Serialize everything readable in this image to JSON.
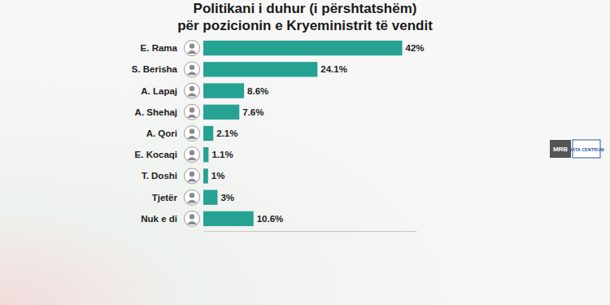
{
  "chart_data": {
    "type": "bar",
    "orientation": "horizontal",
    "title": "Politikani i duhur (i përshtatshëm)",
    "subtitle": "për pozicionin e Kryeministrit të vendit",
    "categories": [
      "E. Rama",
      "S. Berisha",
      "A. Lapaj",
      "A. Shehaj",
      "A. Qori",
      "E. Kocaqi",
      "T. Doshi",
      "Tjetër",
      "Nuk e di"
    ],
    "values": [
      42,
      24.1,
      8.6,
      7.6,
      2.1,
      1.1,
      1,
      3,
      10.6
    ],
    "value_labels": [
      "42%",
      "24.1%",
      "8.6%",
      "7.6%",
      "2.1%",
      "1.1%",
      "1%",
      "3%",
      "10.6%"
    ],
    "data_labels": true,
    "color": "#26a293",
    "xlim": [
      0,
      45
    ],
    "tick_labels": false,
    "grid": false,
    "annotations": [
      "MRB",
      "DATA CENTRUM"
    ]
  }
}
